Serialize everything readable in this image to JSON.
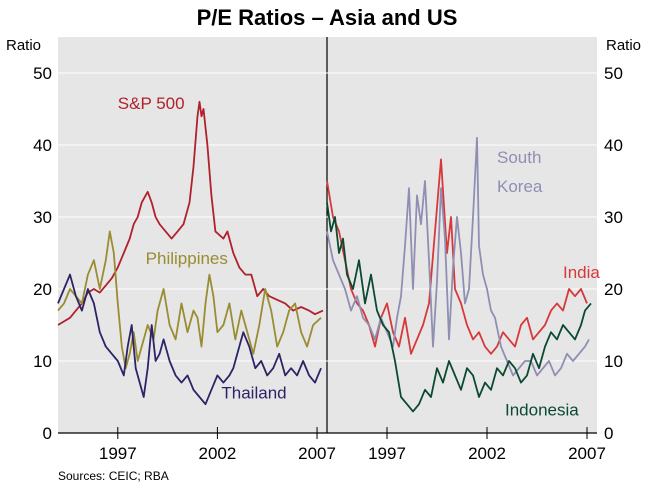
{
  "chart_data": {
    "type": "line",
    "title": "P/E Ratios – Asia and US",
    "ylabel_left": "Ratio",
    "ylabel_right": "Ratio",
    "ylim": [
      0,
      55
    ],
    "yticks": [
      0,
      10,
      20,
      30,
      40,
      50
    ],
    "source": "Sources: CEIC; RBA",
    "colors": {
      "background": "#ffffff",
      "plot_bg": "#e6e6e6",
      "axis": "#000000",
      "sp500": "#b0212b",
      "philippines": "#9a8c32",
      "thailand": "#2c2466",
      "india": "#d8383a",
      "south_korea": "#8f8fb3",
      "indonesia": "#0b4a31"
    },
    "panels": [
      {
        "xlim": [
          1994.0,
          2007.5
        ],
        "xticks": [
          1997,
          2002,
          2007
        ],
        "xtick_labels": [
          "1997",
          "2002",
          "2007"
        ],
        "series": [
          {
            "name": "S&P 500",
            "key": "sp500",
            "x": [
              1994.0,
              1994.3,
              1994.6,
              1994.9,
              1995.2,
              1995.5,
              1995.8,
              1996.1,
              1996.4,
              1996.7,
              1997.0,
              1997.3,
              1997.6,
              1997.8,
              1998.0,
              1998.2,
              1998.5,
              1998.7,
              1998.9,
              1999.1,
              1999.4,
              1999.7,
              2000.0,
              2000.3,
              2000.6,
              2000.8,
              2001.0,
              2001.1,
              2001.2,
              2001.3,
              2001.5,
              2001.7,
              2001.9,
              2002.1,
              2002.3,
              2002.5,
              2002.8,
              2003.1,
              2003.4,
              2003.7,
              2004.0,
              2004.3,
              2004.6,
              2005.0,
              2005.4,
              2005.8,
              2006.2,
              2006.6,
              2006.9,
              2007.3
            ],
            "values": [
              15,
              15.5,
              16,
              17,
              18,
              19.5,
              20,
              19.5,
              20.5,
              21.5,
              23,
              25,
              27,
              29,
              30,
              32,
              33.5,
              32,
              30,
              29,
              28,
              27,
              28,
              29,
              32,
              37,
              44,
              46,
              44,
              45,
              40,
              33,
              28,
              27.5,
              27,
              28,
              25,
              23,
              22,
              22,
              19,
              20,
              19,
              18.5,
              18,
              17,
              17.5,
              17,
              16.5,
              17
            ]
          },
          {
            "name": "Philippines",
            "key": "philippines",
            "x": [
              1994.0,
              1994.3,
              1994.6,
              1994.9,
              1995.2,
              1995.5,
              1995.8,
              1996.1,
              1996.4,
              1996.6,
              1996.8,
              1997.0,
              1997.2,
              1997.4,
              1997.6,
              1997.8,
              1998.0,
              1998.2,
              1998.5,
              1998.8,
              1999.0,
              1999.3,
              1999.6,
              1999.9,
              2000.2,
              2000.5,
              2000.8,
              2001.0,
              2001.2,
              2001.4,
              2001.6,
              2001.8,
              2002.0,
              2002.3,
              2002.6,
              2002.9,
              2003.2,
              2003.5,
              2003.8,
              2004.1,
              2004.4,
              2004.7,
              2005.0,
              2005.3,
              2005.6,
              2005.9,
              2006.2,
              2006.5,
              2006.8,
              2007.2
            ],
            "values": [
              17,
              18,
              20,
              19,
              18,
              22,
              24,
              20,
              24,
              28,
              25,
              18,
              12,
              9,
              11,
              14,
              10,
              12,
              15,
              13,
              17,
              20,
              15,
              13,
              18,
              14,
              17,
              16,
              12,
              18,
              22,
              19,
              14,
              15,
              18,
              13,
              17,
              14,
              11,
              15,
              20,
              17,
              12,
              14,
              17,
              18,
              14,
              12,
              15,
              16
            ]
          },
          {
            "name": "Thailand",
            "key": "thailand",
            "x": [
              1994.0,
              1994.3,
              1994.6,
              1994.9,
              1995.2,
              1995.5,
              1995.8,
              1996.1,
              1996.4,
              1996.7,
              1997.0,
              1997.3,
              1997.5,
              1997.7,
              1997.9,
              1998.1,
              1998.3,
              1998.5,
              1998.7,
              1998.9,
              1999.1,
              1999.3,
              1999.6,
              1999.9,
              2000.2,
              2000.5,
              2000.8,
              2001.1,
              2001.4,
              2001.7,
              2002.0,
              2002.3,
              2002.6,
              2002.8,
              2003.0,
              2003.3,
              2003.6,
              2003.9,
              2004.2,
              2004.5,
              2004.8,
              2005.1,
              2005.4,
              2005.7,
              2006.0,
              2006.3,
              2006.6,
              2006.9,
              2007.2
            ],
            "values": [
              18,
              20,
              22,
              19,
              17,
              20,
              18,
              14,
              12,
              11,
              10,
              8,
              12,
              15,
              9,
              7,
              5,
              9,
              15,
              10,
              11,
              13,
              10,
              8,
              7,
              8,
              6,
              5,
              4,
              6,
              8,
              7,
              8,
              9,
              11,
              14,
              12,
              9,
              10,
              8,
              9,
              11,
              8,
              9,
              8,
              10,
              8,
              7,
              9
            ]
          }
        ],
        "labels": [
          {
            "text": "S&P 500",
            "key": "sp500",
            "at": [
              1997.0,
              45.0
            ]
          },
          {
            "text": "Philippines",
            "key": "philippines",
            "at": [
              1998.4,
              23.5
            ]
          },
          {
            "text": "Thailand",
            "key": "thailand",
            "at": [
              2002.2,
              4.8
            ]
          }
        ]
      },
      {
        "xlim": [
          1994.0,
          2007.5
        ],
        "xticks": [
          1997,
          2002,
          2007
        ],
        "xtick_labels": [
          "1997",
          "2002",
          "2007"
        ],
        "series": [
          {
            "name": "India",
            "key": "india",
            "x": [
              1994.0,
              1994.3,
              1994.6,
              1994.9,
              1995.2,
              1995.5,
              1995.8,
              1996.1,
              1996.4,
              1996.7,
              1997.0,
              1997.3,
              1997.6,
              1997.9,
              1998.2,
              1998.5,
              1998.8,
              1999.1,
              1999.4,
              1999.7,
              2000.0,
              2000.2,
              2000.4,
              2000.7,
              2001.0,
              2001.3,
              2001.6,
              2001.9,
              2002.2,
              2002.5,
              2002.8,
              2003.1,
              2003.4,
              2003.7,
              2004.0,
              2004.3,
              2004.6,
              2004.9,
              2005.2,
              2005.5,
              2005.8,
              2006.1,
              2006.4,
              2006.7,
              2007.0
            ],
            "values": [
              35,
              30,
              28,
              24,
              20,
              18,
              17,
              15,
              12,
              16,
              18,
              14,
              12,
              16,
              11,
              13,
              15,
              18,
              28,
              38,
              25,
              30,
              20,
              18,
              15,
              13,
              14,
              12,
              11,
              12,
              14,
              13,
              12,
              15,
              16,
              13,
              14,
              15,
              17,
              18,
              17,
              20,
              19,
              20,
              18
            ]
          },
          {
            "name": "South Korea",
            "key": "south_korea",
            "x": [
              1994.0,
              1994.3,
              1994.6,
              1994.9,
              1995.2,
              1995.5,
              1995.8,
              1996.1,
              1996.4,
              1996.7,
              1997.0,
              1997.3,
              1997.5,
              1997.7,
              1997.9,
              1998.1,
              1998.3,
              1998.5,
              1998.7,
              1998.9,
              1999.1,
              1999.3,
              1999.5,
              1999.7,
              1999.9,
              2000.1,
              2000.3,
              2000.5,
              2000.7,
              2000.9,
              2001.1,
              2001.3,
              2001.5,
              2001.6,
              2001.8,
              2002.0,
              2002.2,
              2002.4,
              2002.7,
              2003.0,
              2003.3,
              2003.6,
              2003.9,
              2004.2,
              2004.5,
              2004.8,
              2005.1,
              2005.4,
              2005.7,
              2006.0,
              2006.3,
              2006.6,
              2006.9,
              2007.1
            ],
            "values": [
              28,
              24,
              22,
              20,
              17,
              19,
              16,
              15,
              13,
              16,
              14,
              12,
              16,
              19,
              26,
              34,
              20,
              33,
              29,
              35,
              24,
              12,
              21,
              34,
              27,
              13,
              23,
              30,
              25,
              18,
              20,
              30,
              41,
              26,
              22,
              20,
              17,
              16,
              12,
              10,
              8,
              9,
              10,
              10,
              8,
              9,
              10,
              8,
              9,
              11,
              10,
              11,
              12,
              13
            ]
          },
          {
            "name": "Indonesia",
            "key": "indonesia",
            "x": [
              1994.0,
              1994.2,
              1994.4,
              1994.6,
              1994.8,
              1995.0,
              1995.3,
              1995.6,
              1995.9,
              1996.2,
              1996.5,
              1996.8,
              1997.1,
              1997.4,
              1997.7,
              1998.0,
              1998.3,
              1998.6,
              1998.9,
              1999.2,
              1999.5,
              1999.8,
              2000.1,
              2000.4,
              2000.7,
              2001.0,
              2001.3,
              2001.6,
              2001.9,
              2002.2,
              2002.5,
              2002.8,
              2003.1,
              2003.4,
              2003.7,
              2004.0,
              2004.3,
              2004.6,
              2004.9,
              2005.2,
              2005.5,
              2005.8,
              2006.1,
              2006.4,
              2006.7,
              2006.9,
              2007.2
            ],
            "values": [
              32,
              28,
              30,
              25,
              27,
              22,
              20,
              24,
              18,
              22,
              17,
              15,
              14,
              10,
              5,
              4,
              3,
              4,
              6,
              5,
              9,
              7,
              10,
              8,
              6,
              9,
              8,
              5,
              7,
              6,
              9,
              8,
              10,
              9,
              7,
              8,
              11,
              9,
              12,
              14,
              13,
              15,
              14,
              13,
              15,
              17,
              18
            ]
          }
        ],
        "labels": [
          {
            "text": "South",
            "key": "south_korea",
            "at": [
              2002.5,
              37.5
            ]
          },
          {
            "text": "Korea",
            "key": "south_korea",
            "at": [
              2002.5,
              33.5
            ]
          },
          {
            "text": "India",
            "key": "india",
            "at": [
              2005.8,
              21.5
            ]
          },
          {
            "text": "Indonesia",
            "key": "indonesia",
            "at": [
              2002.9,
              2.4
            ]
          }
        ]
      }
    ]
  }
}
